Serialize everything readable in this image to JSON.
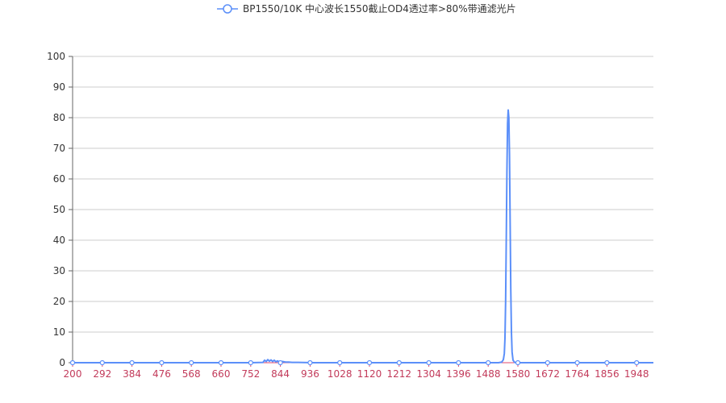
{
  "chart_data": {
    "type": "line",
    "title": "",
    "xlabel": "",
    "ylabel": "",
    "xlim": [
      200,
      2000
    ],
    "ylim": [
      0,
      100
    ],
    "grid": true,
    "legend": {
      "position": "top-center",
      "entries": [
        "BP1550/10K 中心波长1550截止OD4透过率>80%带通滤光片"
      ]
    },
    "y_ticks": [
      0,
      10,
      20,
      30,
      40,
      50,
      60,
      70,
      80,
      90,
      100
    ],
    "x_ticks": [
      200,
      292,
      384,
      476,
      568,
      660,
      752,
      844,
      936,
      1028,
      1120,
      1212,
      1304,
      1396,
      1488,
      1580,
      1672,
      1764,
      1856,
      1948
    ],
    "series": [
      {
        "name": "BP1550/10K 中心波长1550截止OD4透过率>80%带通滤光片",
        "color": "#5b8ff9",
        "x": [
          200,
          292,
          384,
          476,
          568,
          660,
          752,
          790,
          795,
          800,
          805,
          810,
          815,
          820,
          825,
          830,
          835,
          840,
          850,
          860,
          870,
          880,
          900,
          936,
          1028,
          1120,
          1212,
          1304,
          1396,
          1488,
          1520,
          1530,
          1535,
          1538,
          1540,
          1542,
          1544,
          1546,
          1548,
          1550,
          1552,
          1554,
          1556,
          1558,
          1560,
          1562,
          1565,
          1570,
          1580,
          1672,
          1764,
          1856,
          1948,
          2000
        ],
        "y": [
          0,
          0,
          0,
          0,
          0,
          0,
          0,
          0.1,
          0.8,
          0.4,
          1.0,
          0.5,
          0.9,
          0.4,
          0.8,
          0.3,
          0.6,
          0.3,
          0.4,
          0.2,
          0.2,
          0.1,
          0.1,
          0,
          0,
          0,
          0,
          0,
          0,
          0,
          0,
          0.2,
          1.0,
          3.0,
          8.0,
          20.0,
          40.0,
          62.0,
          78.0,
          82.5,
          80.0,
          68.0,
          46.0,
          24.0,
          10.0,
          3.5,
          0.8,
          0.1,
          0,
          0,
          0,
          0,
          0,
          0
        ]
      }
    ]
  }
}
